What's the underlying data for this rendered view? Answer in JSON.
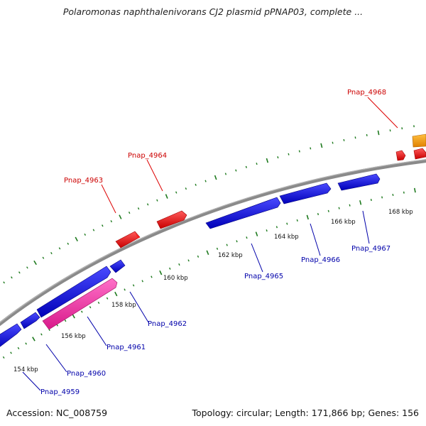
{
  "title": "Polaromonas naphthalenivorans CJ2 plasmid pPNAP03, complete ...",
  "footer": {
    "accession": "Accession: NC_008759",
    "summary": "Topology: circular; Length: 171,866 bp; Genes: 156"
  },
  "colors": {
    "backbone": "#8c8c8c",
    "tick": "#1e7a1e",
    "forward_gene": "#e80000",
    "reverse_gene": "#0a0ae6",
    "highlight_gene": "#ee2299",
    "other_gene": "#f39a00",
    "forward_label": "#cc0000",
    "reverse_label": "#0000aa"
  },
  "tick_labels": [
    {
      "text": "154 kbp"
    },
    {
      "text": "156 kbp"
    },
    {
      "text": "158 kbp"
    },
    {
      "text": "160 kbp"
    },
    {
      "text": "162 kbp"
    },
    {
      "text": "164 kbp"
    },
    {
      "text": "166 kbp"
    },
    {
      "text": "168 kbp"
    }
  ],
  "gene_labels": [
    {
      "text": "Pnap_4968",
      "strand": "forward"
    },
    {
      "text": "Pnap_4964",
      "strand": "forward"
    },
    {
      "text": "Pnap_4963",
      "strand": "forward"
    },
    {
      "text": "Pnap_4962",
      "strand": "reverse"
    },
    {
      "text": "Pnap_4961",
      "strand": "reverse"
    },
    {
      "text": "Pnap_4960",
      "strand": "reverse"
    },
    {
      "text": "Pnap_4959",
      "strand": "reverse"
    },
    {
      "text": "Pnap_4965",
      "strand": "reverse"
    },
    {
      "text": "Pnap_4966",
      "strand": "reverse"
    },
    {
      "text": "Pnap_4967",
      "strand": "reverse"
    }
  ]
}
